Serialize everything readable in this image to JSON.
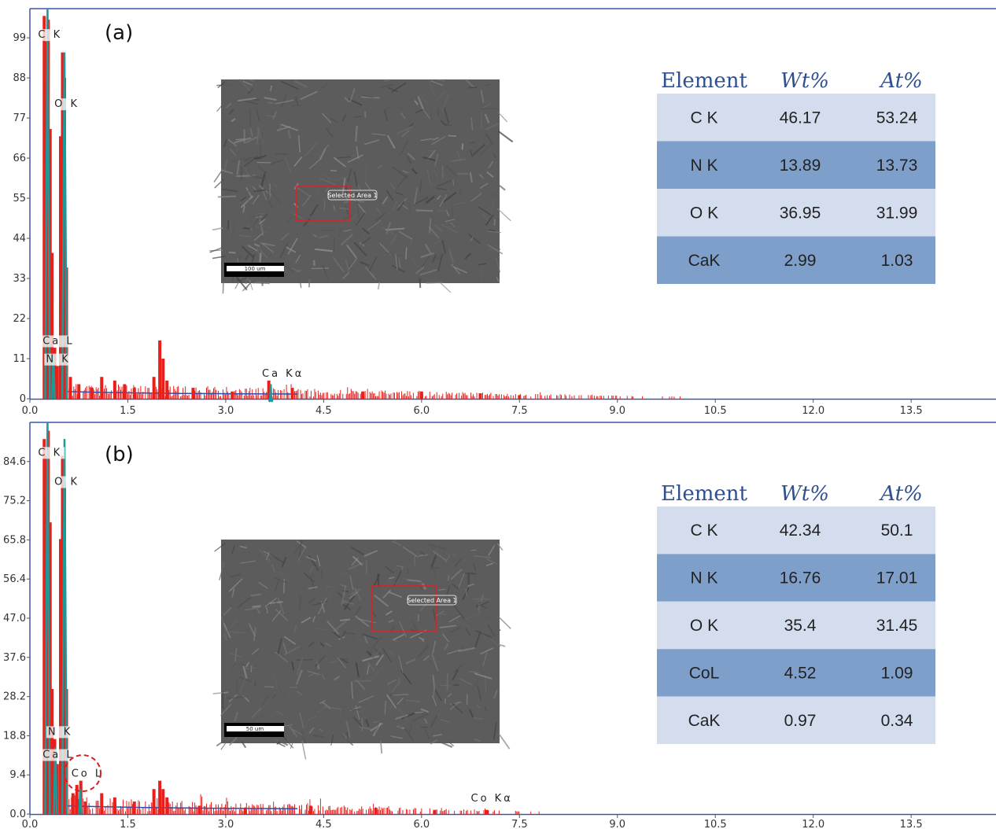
{
  "chart_data": [
    {
      "type": "bar",
      "panel_label": "(a)",
      "x_ticks": [
        "0.0",
        "1.5",
        "3.0",
        "4.5",
        "6.0",
        "7.5",
        "9.0",
        "10.5",
        "12.0",
        "13.5"
      ],
      "y_ticks": [
        "0",
        "11",
        "22",
        "33",
        "44",
        "55",
        "66",
        "77",
        "88",
        "99"
      ],
      "xlim": [
        0,
        14.8
      ],
      "ylim": [
        0,
        107
      ],
      "peak_labels": [
        {
          "text": "C K",
          "x": 0.27,
          "y": 99
        },
        {
          "text": "O K",
          "x": 0.52,
          "y": 80
        },
        {
          "text": "Ca L",
          "x": 0.34,
          "y": 15
        },
        {
          "text": "N K",
          "x": 0.39,
          "y": 10
        },
        {
          "text": "Ca Kα",
          "x": 3.7,
          "y": 6
        }
      ],
      "teal_peaks": [
        {
          "x": 0.27,
          "y": 107,
          "w": 0.07
        },
        {
          "x": 0.53,
          "y": 95,
          "w": 0.07
        },
        {
          "x": 0.36,
          "y": 12,
          "w": 0.04
        },
        {
          "x": 3.69,
          "y": 4,
          "w": 0.05
        }
      ],
      "red_bars": [
        {
          "x": 0.22,
          "y": 105
        },
        {
          "x": 0.25,
          "y": 98
        },
        {
          "x": 0.28,
          "y": 104
        },
        {
          "x": 0.31,
          "y": 74
        },
        {
          "x": 0.34,
          "y": 40
        },
        {
          "x": 0.38,
          "y": 14
        },
        {
          "x": 0.42,
          "y": 9
        },
        {
          "x": 0.47,
          "y": 72
        },
        {
          "x": 0.5,
          "y": 95
        },
        {
          "x": 0.53,
          "y": 88
        },
        {
          "x": 0.56,
          "y": 36
        },
        {
          "x": 0.62,
          "y": 6
        },
        {
          "x": 0.75,
          "y": 4
        },
        {
          "x": 0.95,
          "y": 3
        },
        {
          "x": 1.1,
          "y": 6
        },
        {
          "x": 1.3,
          "y": 5
        },
        {
          "x": 1.45,
          "y": 4
        },
        {
          "x": 1.6,
          "y": 3
        },
        {
          "x": 1.9,
          "y": 6
        },
        {
          "x": 1.99,
          "y": 16
        },
        {
          "x": 2.04,
          "y": 11
        },
        {
          "x": 2.1,
          "y": 5
        },
        {
          "x": 2.5,
          "y": 3
        },
        {
          "x": 3.1,
          "y": 2
        },
        {
          "x": 3.66,
          "y": 5
        },
        {
          "x": 4.02,
          "y": 3
        },
        {
          "x": 5.1,
          "y": 2
        },
        {
          "x": 6.0,
          "y": 2
        },
        {
          "x": 6.9,
          "y": 1.5
        },
        {
          "x": 7.5,
          "y": 1
        }
      ],
      "table": {
        "headers": [
          "Element",
          "Wt%",
          "At%"
        ],
        "rows": [
          [
            "C K",
            "46.17",
            "53.24"
          ],
          [
            "N K",
            "13.89",
            "13.73"
          ],
          [
            "O K",
            "36.95",
            "31.99"
          ],
          [
            "CaK",
            "2.99",
            "1.03"
          ]
        ]
      },
      "inset": {
        "selection_label": "Selected Area 1",
        "scale_label": "100 um"
      }
    },
    {
      "type": "bar",
      "panel_label": "(b)",
      "x_ticks": [
        "0.0",
        "1.5",
        "3.0",
        "4.5",
        "6.0",
        "7.5",
        "9.0",
        "10.5",
        "12.0",
        "13.5"
      ],
      "y_ticks": [
        "0.0",
        "9.4",
        "18.8",
        "28.2",
        "37.6",
        "47.0",
        "56.4",
        "65.8",
        "75.2",
        "84.6"
      ],
      "xlim": [
        0,
        14.8
      ],
      "ylim": [
        0,
        94
      ],
      "peak_labels": [
        {
          "text": "C K",
          "x": 0.27,
          "y": 86
        },
        {
          "text": "O K",
          "x": 0.52,
          "y": 79
        },
        {
          "text": "N K",
          "x": 0.42,
          "y": 19
        },
        {
          "text": "Ca L",
          "x": 0.34,
          "y": 13.5
        },
        {
          "text": "Co L",
          "x": 0.78,
          "y": 9
        },
        {
          "text": "Co Kα",
          "x": 6.9,
          "y": 3
        }
      ],
      "teal_peaks": [
        {
          "x": 0.27,
          "y": 94,
          "w": 0.07
        },
        {
          "x": 0.53,
          "y": 90,
          "w": 0.07
        },
        {
          "x": 0.39,
          "y": 16,
          "w": 0.04
        },
        {
          "x": 0.77,
          "y": 6,
          "w": 0.05
        }
      ],
      "red_bars": [
        {
          "x": 0.22,
          "y": 90
        },
        {
          "x": 0.25,
          "y": 86
        },
        {
          "x": 0.28,
          "y": 92
        },
        {
          "x": 0.31,
          "y": 70
        },
        {
          "x": 0.34,
          "y": 30
        },
        {
          "x": 0.38,
          "y": 18
        },
        {
          "x": 0.42,
          "y": 12
        },
        {
          "x": 0.47,
          "y": 66
        },
        {
          "x": 0.5,
          "y": 86
        },
        {
          "x": 0.53,
          "y": 80
        },
        {
          "x": 0.56,
          "y": 30
        },
        {
          "x": 0.66,
          "y": 5
        },
        {
          "x": 0.72,
          "y": 7
        },
        {
          "x": 0.78,
          "y": 8
        },
        {
          "x": 0.85,
          "y": 3
        },
        {
          "x": 1.1,
          "y": 5
        },
        {
          "x": 1.3,
          "y": 4
        },
        {
          "x": 1.6,
          "y": 3
        },
        {
          "x": 1.9,
          "y": 6
        },
        {
          "x": 1.99,
          "y": 8
        },
        {
          "x": 2.04,
          "y": 6
        },
        {
          "x": 2.1,
          "y": 4
        },
        {
          "x": 2.6,
          "y": 2
        },
        {
          "x": 3.3,
          "y": 1.5
        },
        {
          "x": 4.3,
          "y": 2
        },
        {
          "x": 5.3,
          "y": 1.5
        },
        {
          "x": 6.2,
          "y": 1
        },
        {
          "x": 7.0,
          "y": 1
        }
      ],
      "table": {
        "headers": [
          "Element",
          "Wt%",
          "At%"
        ],
        "rows": [
          [
            "C K",
            "42.34",
            "50.1"
          ],
          [
            "N K",
            "16.76",
            "17.01"
          ],
          [
            "O K",
            "35.4",
            "31.45"
          ],
          [
            "CoL",
            "4.52",
            "1.09"
          ],
          [
            "CaK",
            "0.97",
            "0.34"
          ]
        ]
      },
      "inset": {
        "selection_label": "Selected Area 1",
        "scale_label": "50 um"
      }
    }
  ],
  "colors": {
    "frame": "#3c56a8",
    "spectrum_red": "#e8201c",
    "peak_teal": "#1b9a9a",
    "baseline_blue": "#2a4fb0",
    "row_light": "#d3dded",
    "row_dark": "#7f9fcb",
    "marker_red": "#d42020"
  }
}
